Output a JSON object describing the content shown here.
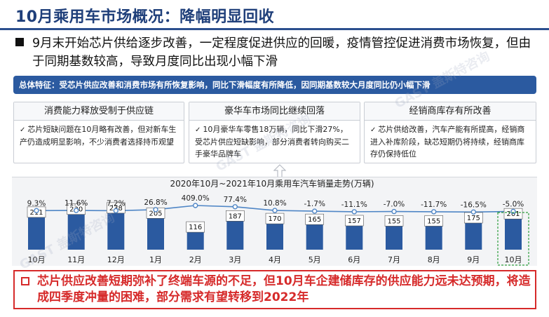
{
  "slide": {
    "title": "10月乘用车市场概况：降幅明显回收",
    "bullet": "9月末开始芯片供给逐步改善，一定程度促进供应的回暖，疫情管控促进消费市场恢复，但由于同期基数较高，导致月度同比出现小幅下滑",
    "feature_bar": "总体特征：受芯片供应改善和消费市场有所恢复影响，同比下滑幅度有所降低，因同期基数较大月度同比仍小幅下滑",
    "cards": [
      {
        "title": "消费能力释放受制于供应链",
        "body": "芯片短缺问题在10月略有改善，但对新车生产仍造成明显影响，不少消费者选择持币观望"
      },
      {
        "title": "豪华车市场同比继续回落",
        "body": "10月豪华车零售18万辆，同比下滑27%，受芯片供应短缺影响，部分消费者转向购买二手豪华品牌车"
      },
      {
        "title": "经销商库存有所改善",
        "body": "芯片供给改善，汽车产能有所提高，经销商进入补库阶段，缺芯短期仍将持续，经销商库存仍保持低位"
      }
    ],
    "conclusion": "芯片供应改善短期弥补了终端车源的不足，但10月车企建储库存的供应能力远未达预期，将造成四季度冲量的困难，部分需求有望转移到2022年",
    "watermark": "GAST 盖斯特咨询"
  },
  "icons": {
    "bullet": "square-bullet-icon",
    "check": "check-icon",
    "arrow": "up-arrow-icon",
    "conclusion": "hollow-square-icon"
  },
  "colors": {
    "title": "#1f3f7a",
    "bar": "#2b5aa0",
    "accent_red": "#d62a2a",
    "line": "#4f86c6",
    "highlight_box": "#2e9e3e"
  },
  "chart_data": {
    "type": "bar",
    "title": "2020年10月~2021年10月乘用车汽车销量走势(万辆)",
    "categories": [
      "10月",
      "11月",
      "12月",
      "1月",
      "2月",
      "3月",
      "4月",
      "5月",
      "6月",
      "7月",
      "8月",
      "9月",
      "10月"
    ],
    "series": [
      {
        "values": [
          211,
          230,
          238,
          205,
          116,
          187,
          170,
          165,
          157,
          155,
          155,
          175,
          201
        ]
      },
      {
        "type": "line",
        "values": [
          9.3,
          11.6,
          7.2,
          26.8,
          409.0,
          77.4,
          10.8,
          -1.7,
          -11.1,
          -7.0,
          -11.7,
          -16.5,
          -5.0
        ],
        "labels": [
          "9.3%",
          "11.6%",
          "7.2%",
          "26.8%",
          "409.0%",
          "77.4%",
          "10.8%",
          "-1.7%",
          "-11.1%",
          "-7.0%",
          "-11.7%",
          "-16.5%",
          "-5.0%"
        ]
      }
    ],
    "ylim": [
      0,
      260
    ],
    "highlight_category": 12,
    "grid": false
  }
}
